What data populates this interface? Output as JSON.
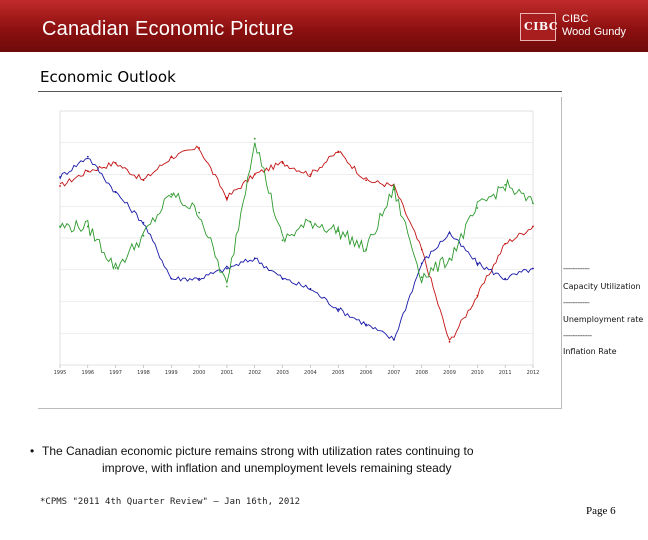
{
  "header": {
    "title": "Canadian Economic Picture",
    "logo_mark": "CIBC",
    "logo_line1": "CIBC",
    "logo_line2": "Wood Gundy"
  },
  "subtitle": "Economic Outlook",
  "legend": {
    "dash": "-----------",
    "dash2": "------------",
    "capacity": "Capacity Utilization",
    "unemployment": "Unemployment rate",
    "inflation": "Inflation Rate"
  },
  "bullet": {
    "symbol": "•",
    "line1": "The Canadian economic picture remains strong with utilization rates continuing to",
    "line2": "improve, with inflation and unemployment levels remaining steady"
  },
  "source": "*CPMS \"2011 4th Quarter Review\" – Jan 16th, 2012",
  "page": "Page 6",
  "colors": {
    "header": "#a81d1d",
    "capacity": "#c41414",
    "unemployment": "#1a1aa8",
    "inflation": "#2e9a2e"
  },
  "chart_data": {
    "type": "line",
    "x": [
      1995,
      1996,
      1997,
      1998,
      1999,
      2000,
      2001,
      2002,
      2003,
      2004,
      2005,
      2006,
      2007,
      2008,
      2009,
      2010,
      2011,
      2012
    ],
    "x_tick_labels": [
      "1995",
      "1996",
      "1997",
      "1998",
      "1999",
      "2000",
      "2001",
      "2002",
      "2003",
      "2004",
      "2005",
      "2006",
      "2007",
      "2008",
      "2009",
      "2010",
      "2011",
      "2012"
    ],
    "series": [
      {
        "name": "Capacity Utilization",
        "color": "#c41414",
        "values": [
          83.5,
          84.8,
          85.5,
          84.0,
          86.0,
          86.8,
          82.5,
          84.5,
          85.5,
          84.5,
          86.5,
          84.0,
          83.5,
          78.0,
          70.0,
          74.0,
          78.5,
          80.0
        ]
      },
      {
        "name": "Unemployment rate",
        "color": "#1a1aa8",
        "values": [
          9.2,
          9.6,
          8.9,
          8.3,
          7.2,
          7.2,
          7.4,
          7.6,
          7.2,
          7.0,
          6.6,
          6.3,
          6.0,
          7.5,
          8.1,
          7.5,
          7.2,
          7.4
        ]
      },
      {
        "name": "Inflation Rate",
        "color": "#2e9a2e",
        "values": [
          2.0,
          2.0,
          1.1,
          1.8,
          2.7,
          2.3,
          0.7,
          3.9,
          1.7,
          2.1,
          1.9,
          1.5,
          2.8,
          0.9,
          1.3,
          2.4,
          2.9,
          2.5
        ]
      }
    ],
    "ylim_capacity": [
      68,
      90
    ],
    "ylim_unemployment": [
      5.5,
      10.5
    ],
    "ylim_inflation": [
      -1,
      4.5
    ],
    "grid": true,
    "legend_position": "right"
  }
}
